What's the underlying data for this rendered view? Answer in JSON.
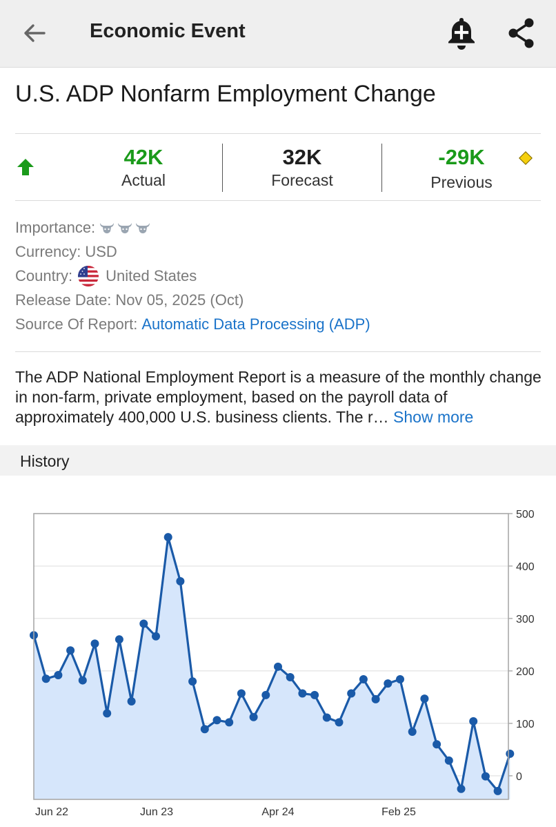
{
  "appbar": {
    "title": "Economic Event"
  },
  "event": {
    "title": "U.S. ADP Nonfarm Employment Change"
  },
  "stats": {
    "actual": {
      "value": "42K",
      "label": "Actual"
    },
    "forecast": {
      "value": "32K",
      "label": "Forecast"
    },
    "previous": {
      "value": "-29K",
      "label": "Previous"
    },
    "colors": {
      "positive": "#1a9a1a",
      "revised_marker": "#f5cf0d"
    }
  },
  "info": {
    "importance_label": "Importance:",
    "importance_level": 3,
    "currency_label": "Currency:",
    "currency_value": "USD",
    "country_label": "Country:",
    "country_value": "United States",
    "release_label": "Release Date:",
    "release_value": "Nov 05, 2025 (Oct)",
    "source_label": "Source Of Report:",
    "source_value": "Automatic Data Processing (ADP)"
  },
  "description": {
    "text": "The ADP National Employment Report is a measure of the monthly change in non-farm, private employment, based on the payroll data of approximately 400,000 U.S. business clients. The r…",
    "more": "Show more"
  },
  "history": {
    "title": "History"
  },
  "chart_data": {
    "type": "area",
    "ylim": [
      -45,
      500
    ],
    "yticks": [
      0,
      100,
      200,
      300,
      400,
      500
    ],
    "x_tick_labels": [
      "Jun 22",
      "Jun 23",
      "Apr 24",
      "Feb 25"
    ],
    "values": [
      268,
      185,
      192,
      239,
      182,
      252,
      119,
      260,
      142,
      290,
      266,
      455,
      371,
      180,
      89,
      106,
      102,
      157,
      112,
      154,
      208,
      188,
      157,
      154,
      111,
      102,
      157,
      184,
      146,
      176,
      184,
      84,
      147,
      60,
      29,
      -25,
      104,
      -1,
      -29,
      42
    ],
    "line_color": "#1a5aa8",
    "fill_color": "#d6e6fb"
  }
}
